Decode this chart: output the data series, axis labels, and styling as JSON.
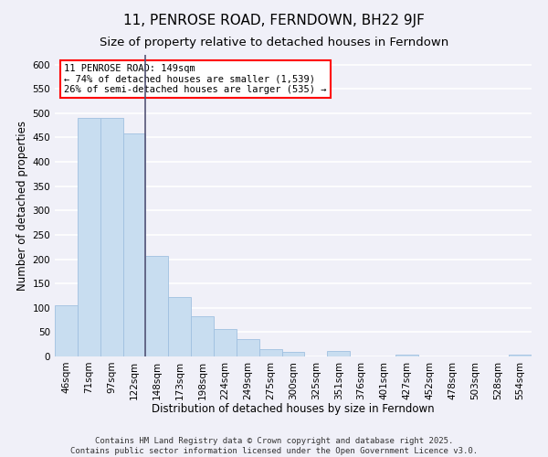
{
  "title": "11, PENROSE ROAD, FERNDOWN, BH22 9JF",
  "subtitle": "Size of property relative to detached houses in Ferndown",
  "xlabel": "Distribution of detached houses by size in Ferndown",
  "ylabel": "Number of detached properties",
  "bar_labels": [
    "46sqm",
    "71sqm",
    "97sqm",
    "122sqm",
    "148sqm",
    "173sqm",
    "198sqm",
    "224sqm",
    "249sqm",
    "275sqm",
    "300sqm",
    "325sqm",
    "351sqm",
    "376sqm",
    "401sqm",
    "427sqm",
    "452sqm",
    "478sqm",
    "503sqm",
    "528sqm",
    "554sqm"
  ],
  "bar_values": [
    105,
    490,
    490,
    458,
    207,
    122,
    82,
    57,
    36,
    15,
    10,
    0,
    12,
    0,
    0,
    4,
    0,
    0,
    0,
    0,
    4
  ],
  "bar_color": "#c8ddf0",
  "bar_edge_color": "#a0c0e0",
  "vline_x": 3.5,
  "vline_color": "#555577",
  "ylim": [
    0,
    620
  ],
  "yticks": [
    0,
    50,
    100,
    150,
    200,
    250,
    300,
    350,
    400,
    450,
    500,
    550,
    600
  ],
  "annotation_title": "11 PENROSE ROAD: 149sqm",
  "annotation_line2": "← 74% of detached houses are smaller (1,539)",
  "annotation_line3": "26% of semi-detached houses are larger (535) →",
  "footer_line1": "Contains HM Land Registry data © Crown copyright and database right 2025.",
  "footer_line2": "Contains public sector information licensed under the Open Government Licence v3.0.",
  "background_color": "#f0f0f8",
  "plot_bg_color": "#f0f0f8",
  "grid_color": "#ffffff",
  "title_fontsize": 11,
  "subtitle_fontsize": 9.5,
  "axis_label_fontsize": 8.5,
  "tick_fontsize": 7.5,
  "annotation_fontsize": 7.5,
  "footer_fontsize": 6.5
}
